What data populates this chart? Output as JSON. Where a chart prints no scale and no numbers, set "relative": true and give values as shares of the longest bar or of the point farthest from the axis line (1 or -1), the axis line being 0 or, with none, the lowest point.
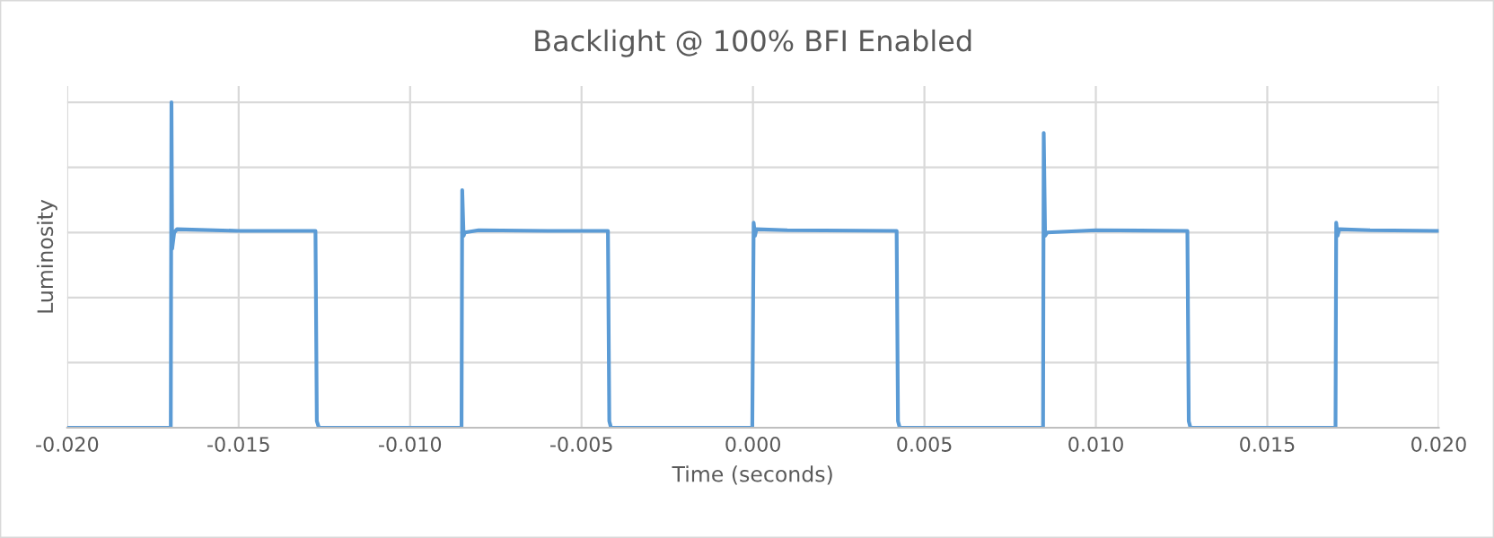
{
  "chart_data": {
    "type": "line",
    "title": "Backlight @ 100% BFI Enabled",
    "xlabel": "Time (seconds)",
    "ylabel": "Luminosity",
    "relative": true,
    "xlim": [
      -0.02,
      0.02
    ],
    "xticks": [
      {
        "value": -0.02,
        "label": "-0.020"
      },
      {
        "value": -0.015,
        "label": "-0.015"
      },
      {
        "value": -0.01,
        "label": "-0.010"
      },
      {
        "value": -0.005,
        "label": "-0.005"
      },
      {
        "value": 0,
        "label": "0.000"
      },
      {
        "value": 0.005,
        "label": "0.005"
      },
      {
        "value": 0.01,
        "label": "0.010"
      },
      {
        "value": 0.015,
        "label": "0.015"
      },
      {
        "value": 0.02,
        "label": "0.020"
      }
    ],
    "grid": true,
    "line_style": "solid",
    "marker": "none",
    "series": [
      {
        "color": "#5b9bd5",
        "x": [
          -0.02,
          -0.01698,
          -0.01696,
          -0.01694,
          -0.01688,
          -0.0168,
          -0.015,
          -0.01276,
          -0.01272,
          -0.01266,
          -0.0085,
          -0.00848,
          -0.00844,
          -0.0084,
          -0.008,
          -0.006,
          -0.00423,
          -0.00419,
          -0.00414,
          -2e-05,
          2e-05,
          6e-05,
          0.0001,
          0.001,
          0.00419,
          0.00423,
          0.00428,
          0.00846,
          0.00848,
          0.00852,
          0.00858,
          0.01,
          0.01267,
          0.01271,
          0.01276,
          0.01699,
          0.01701,
          0.01705,
          0.0171,
          0.018,
          0.02
        ],
        "values": [
          0,
          0,
          1.0,
          0.55,
          0.6,
          0.61,
          0.605,
          0.605,
          0.02,
          0,
          0,
          0.73,
          0.59,
          0.6,
          0.607,
          0.605,
          0.605,
          0.02,
          0,
          0,
          0.63,
          0.59,
          0.61,
          0.607,
          0.605,
          0.02,
          0,
          0,
          0.906,
          0.59,
          0.6,
          0.607,
          0.605,
          0.02,
          0,
          0,
          0.63,
          0.59,
          0.61,
          0.607,
          0.605
        ]
      }
    ]
  }
}
